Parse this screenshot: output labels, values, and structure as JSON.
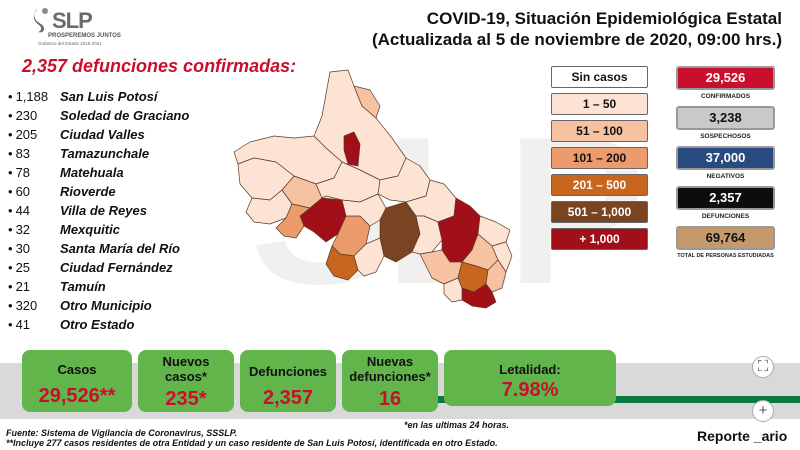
{
  "header": {
    "logo_text": "SLP",
    "logo_sub": "PROSPEREMOS JUNTOS",
    "logo_sub2": "Gobierno del Estado 2015-2021",
    "title_line1": "COVID-19, Situación Epidemiológica Estatal",
    "title_line2": "(Actualizada al 5 de noviembre de 2020, 09:00 hrs.)"
  },
  "watermark": "SLP",
  "headline": "2,357 defunciones confirmadas:",
  "municipalities": [
    {
      "count": "1,188",
      "name": "San Luis Potosí"
    },
    {
      "count": "230",
      "name": "Soledad de Graciano"
    },
    {
      "count": "205",
      "name": "Ciudad Valles"
    },
    {
      "count": "83",
      "name": "Tamazunchale"
    },
    {
      "count": "78",
      "name": "Matehuala"
    },
    {
      "count": "60",
      "name": "Rioverde"
    },
    {
      "count": "44",
      "name": "Villa de Reyes"
    },
    {
      "count": "32",
      "name": "Mexquitic"
    },
    {
      "count": "30",
      "name": "Santa María del Río"
    },
    {
      "count": "25",
      "name": "Ciudad Fernández"
    },
    {
      "count": "21",
      "name": "Tamuín"
    },
    {
      "count": "320",
      "name": "Otro Municipio"
    },
    {
      "count": "41",
      "name": "Otro Estado"
    }
  ],
  "legend": [
    {
      "label": "Sin casos",
      "color": "#ffffff",
      "text_color": "#111111"
    },
    {
      "label": "1 – 50",
      "color": "#fde3d3",
      "text_color": "#111111"
    },
    {
      "label": "51 – 100",
      "color": "#f7c2a2",
      "text_color": "#111111"
    },
    {
      "label": "101 – 200",
      "color": "#ec9b6c",
      "text_color": "#111111"
    },
    {
      "label": "201 – 500",
      "color": "#c8651f",
      "text_color": "#ffffff"
    },
    {
      "label": "501 – 1,000",
      "color": "#7a4321",
      "text_color": "#ffffff"
    },
    {
      "label": "+ 1,000",
      "color": "#a11018",
      "text_color": "#ffffff"
    }
  ],
  "stats": [
    {
      "value": "29,526",
      "label": "CONFIRMADOS",
      "bg": "#c8102e",
      "fg": "#ffffff"
    },
    {
      "value": "3,238",
      "label": "SOSPECHOSOS",
      "bg": "#c9c9c9",
      "fg": "#111111"
    },
    {
      "value": "37,000",
      "label": "NEGATIVOS",
      "bg": "#284a7e",
      "fg": "#ffffff"
    },
    {
      "value": "2,357",
      "label": "DEFUNCIONES",
      "bg": "#0d0d0d",
      "fg": "#ffffff"
    },
    {
      "value": "69,764",
      "label": "TOTAL DE PERSONAS ESTUDIADAS",
      "bg": "#c49a6c",
      "fg": "#111111"
    }
  ],
  "summary": {
    "casos_label": "Casos",
    "casos_value": "29,526**",
    "nuevos_casos_label": "Nuevos casos*",
    "nuevos_casos_value": "235*",
    "defunciones_label": "Defunciones",
    "defunciones_value": "2,357",
    "nuevas_def_label": "Nuevas defunciones*",
    "nuevas_def_value": "16",
    "letalidad_label": "Letalidad:",
    "letalidad_value": "7.98%"
  },
  "footnotes": {
    "last24": "*en las ultimas 24 horas.",
    "source": "Fuente: Sistema de Vigilancia de Coronavirus, SSSLP.",
    "note2": "**Incluye 277 casos residentes de otra Entidad y un caso residente de San Luis Potosí, identificada en otro Estado.",
    "report": "Reporte _ario"
  },
  "buttons": {
    "expand": "⛶",
    "plus": "+"
  }
}
